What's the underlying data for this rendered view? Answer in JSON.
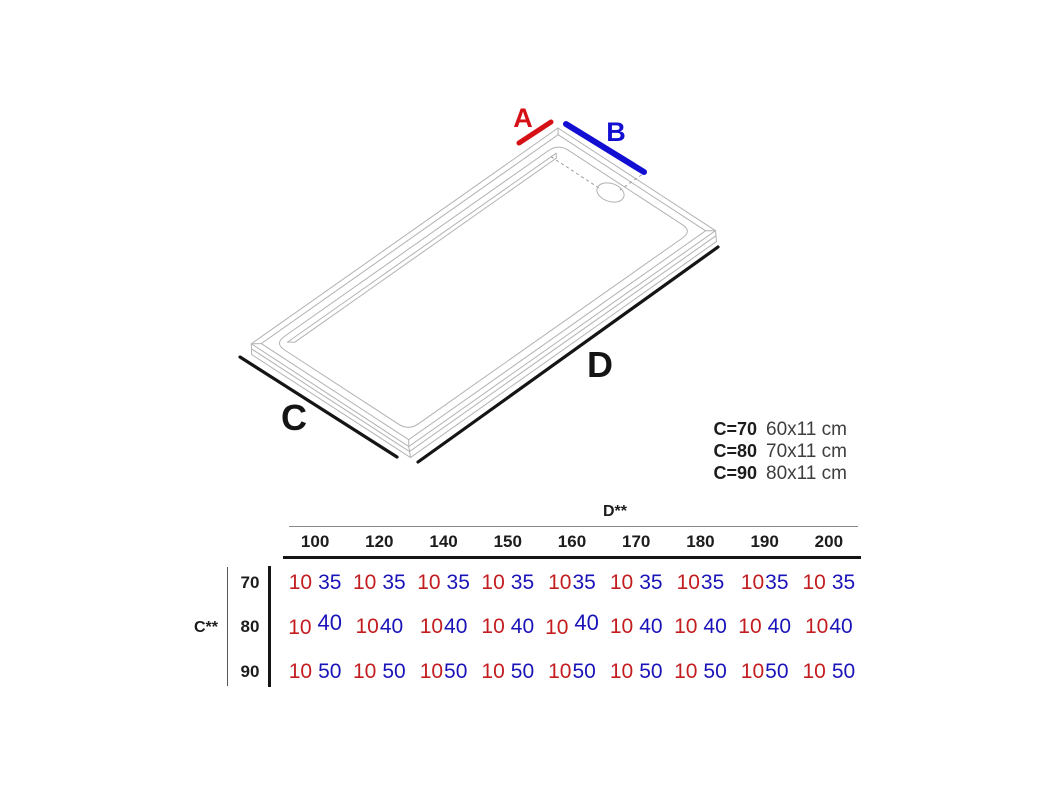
{
  "colors": {
    "dim_red": "#d51116",
    "dim_blue": "#120fd2",
    "dim_black": "#151515",
    "sketch_gray": "#b2b2b5",
    "dash_gray": "#9a9aa0",
    "table_red": "#c31d20",
    "table_blue": "#1a14b8",
    "text_black": "#1c1c1c",
    "spec_gray": "#3e3e3e",
    "rule_dark": "#151515",
    "rule_light": "#8a8a8a"
  },
  "drawing": {
    "labels": {
      "a": "A",
      "b": "B",
      "c": "C",
      "d": "D"
    }
  },
  "specs": [
    {
      "label": "C=70",
      "value": "60x11 cm"
    },
    {
      "label": "C=80",
      "value": "70x11 cm"
    },
    {
      "label": "C=90",
      "value": "80x11 cm"
    }
  ],
  "table": {
    "col_axis": "D**",
    "row_axis": "C**",
    "columns": [
      "100",
      "120",
      "140",
      "150",
      "160",
      "170",
      "180",
      "190",
      "200"
    ],
    "rows": [
      {
        "label": "70",
        "cells": [
          {
            "r": "10",
            "b": "35",
            "sp": 1
          },
          {
            "r": "10",
            "b": "35",
            "sp": 1
          },
          {
            "r": "10",
            "b": "35",
            "sp": 1
          },
          {
            "r": "10",
            "b": "35",
            "sp": 1
          },
          {
            "r": "10",
            "b": "35",
            "sp": 0
          },
          {
            "r": "10",
            "b": "35",
            "sp": 1
          },
          {
            "r": "10",
            "b": "35",
            "sp": 0
          },
          {
            "r": "10",
            "b": "35",
            "sp": 0
          },
          {
            "r": "10",
            "b": "35",
            "sp": 1
          }
        ]
      },
      {
        "label": "80",
        "cells": [
          {
            "r": "10",
            "b": "40",
            "sp": 1,
            "up": 1
          },
          {
            "r": "10",
            "b": "40",
            "sp": 0
          },
          {
            "r": "10",
            "b": "40",
            "sp": 0
          },
          {
            "r": "10",
            "b": "40",
            "sp": 1
          },
          {
            "r": "10",
            "b": "40",
            "sp": 1,
            "up": 1
          },
          {
            "r": "10",
            "b": "40",
            "sp": 1
          },
          {
            "r": "10",
            "b": "40",
            "sp": 1
          },
          {
            "r": "10",
            "b": "40",
            "sp": 1
          },
          {
            "r": "10",
            "b": "40",
            "sp": 0
          }
        ]
      },
      {
        "label": "90",
        "cells": [
          {
            "r": "10",
            "b": "50",
            "sp": 1
          },
          {
            "r": "10",
            "b": "50",
            "sp": 1
          },
          {
            "r": "10",
            "b": "50",
            "sp": 0
          },
          {
            "r": "10",
            "b": "50",
            "sp": 1
          },
          {
            "r": "10",
            "b": "50",
            "sp": 0
          },
          {
            "r": "10",
            "b": "50",
            "sp": 1
          },
          {
            "r": "10",
            "b": "50",
            "sp": 1
          },
          {
            "r": "10",
            "b": "50",
            "sp": 0
          },
          {
            "r": "10",
            "b": "50",
            "sp": 1
          }
        ]
      }
    ]
  }
}
